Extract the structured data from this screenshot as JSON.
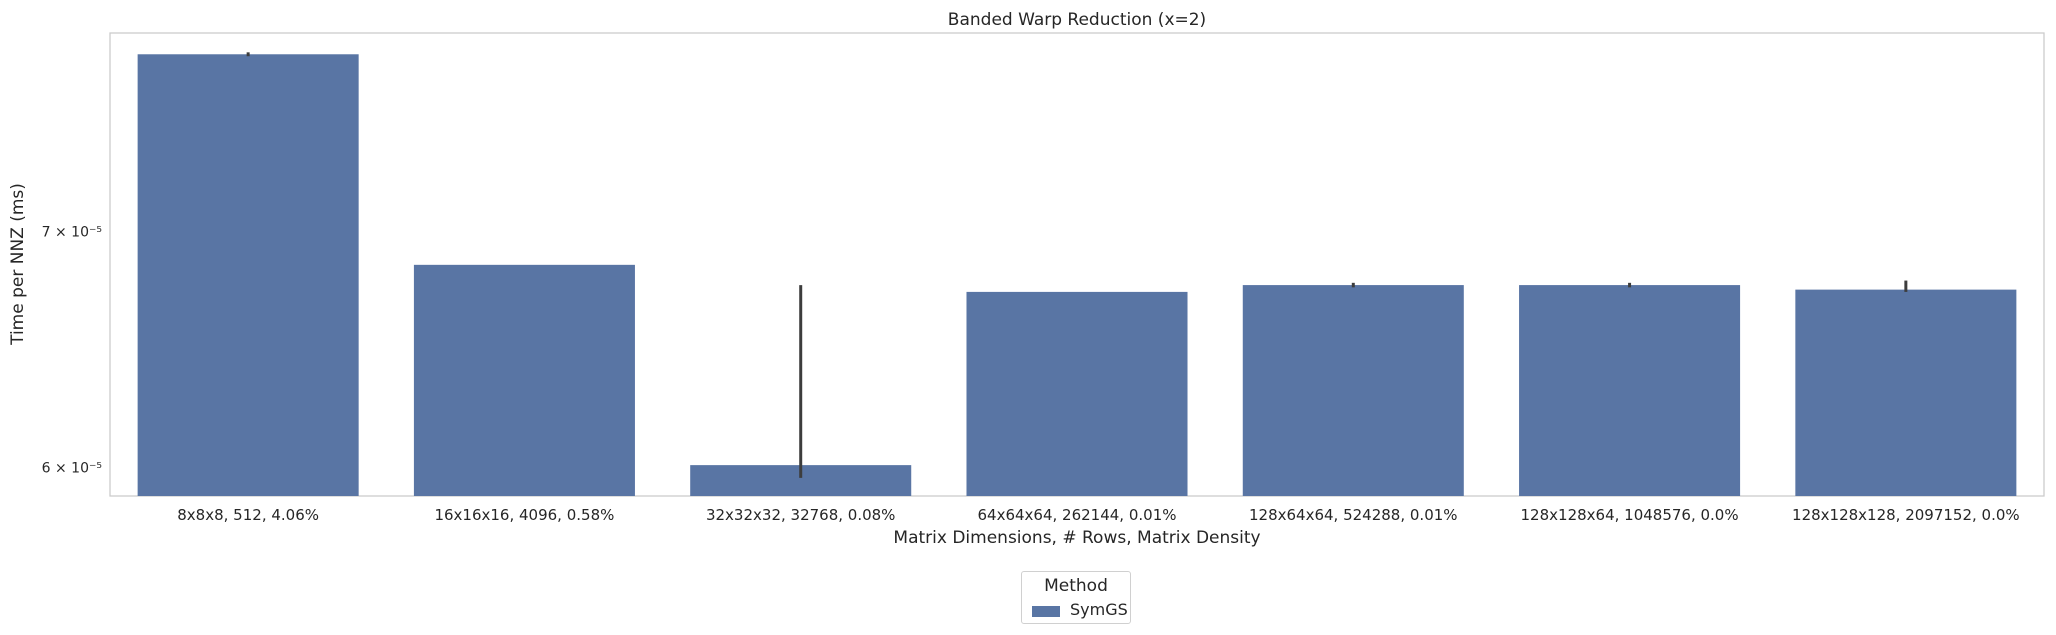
{
  "chart_data": {
    "type": "bar",
    "title": "Banded Warp Reduction (x=2)",
    "xlabel": "Matrix Dimensions, # Rows, Matrix Density",
    "ylabel": "Time per NNZ (ms)",
    "yscale": "log",
    "ylim": [
      5.89e-05,
      7.97e-05
    ],
    "yticks": [
      {
        "value": 6e-05,
        "label": "6 × 10⁻⁵"
      },
      {
        "value": 7e-05,
        "label": "7 × 10⁻⁵"
      }
    ],
    "grid": false,
    "legend_title": "Method",
    "legend_placement": "bottom-center",
    "categories": [
      "8x8x8, 512, 4.06%",
      "16x16x16, 4096, 0.58%",
      "32x32x32, 32768, 0.08%",
      "64x64x64, 262144, 0.01%",
      "128x64x64, 524288, 0.01%",
      "128x128x64, 1048576, 0.0%",
      "128x128x128, 2097152, 0.0%"
    ],
    "series": [
      {
        "name": "SymGS",
        "color": "#5975a4",
        "values": [
          7.86e-05,
          6.85e-05,
          6.01e-05,
          6.73e-05,
          6.76e-05,
          6.76e-05,
          6.74e-05
        ],
        "error_low": [
          7.85e-05,
          6.85e-05,
          5.96e-05,
          6.73e-05,
          6.75e-05,
          6.75e-05,
          6.73e-05
        ],
        "error_high": [
          7.87e-05,
          6.85e-05,
          6.76e-05,
          6.73e-05,
          6.77e-05,
          6.77e-05,
          6.78e-05
        ]
      }
    ]
  }
}
